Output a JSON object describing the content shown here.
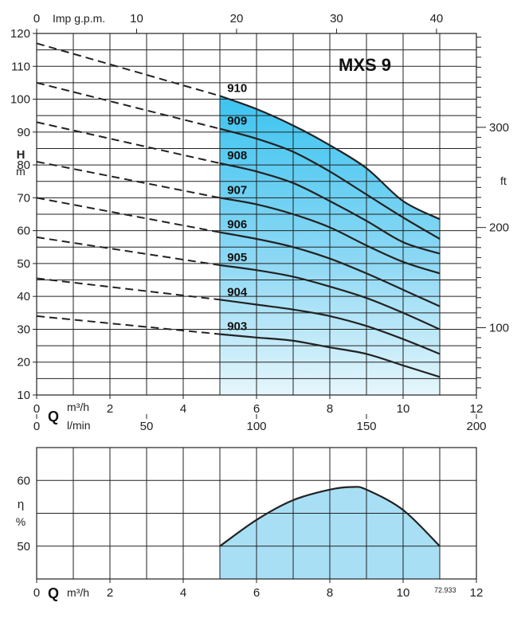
{
  "chart_data": [
    {
      "type": "line",
      "title": "MXS 9",
      "ylabel": "H",
      "yunit": "m",
      "y2unit": "ft",
      "xlabel": "Q",
      "xunit": "m³/h",
      "x_top_label": "Imp g.p.m.",
      "x_lmin_label": "l/min",
      "xlim": [
        0,
        12
      ],
      "ylim": [
        10,
        120
      ],
      "x_ticks": [
        0,
        2,
        4,
        6,
        8,
        10,
        12
      ],
      "y_ticks": [
        10,
        20,
        30,
        40,
        50,
        60,
        70,
        80,
        90,
        100,
        110,
        120
      ],
      "gpm_ticks": [
        0,
        10,
        20,
        30,
        40
      ],
      "lmin_ticks": [
        0,
        50,
        100,
        150,
        200
      ],
      "ft_ticks": [
        100,
        200,
        300
      ],
      "operating_range": [
        5,
        11
      ],
      "series": [
        {
          "name": "910",
          "x": [
            0,
            5,
            6,
            7,
            8,
            9,
            10,
            11
          ],
          "y": [
            117,
            101,
            97,
            92,
            86,
            79,
            69,
            63.5
          ]
        },
        {
          "name": "909",
          "x": [
            0,
            5,
            6,
            7,
            8,
            9,
            10,
            11
          ],
          "y": [
            105,
            91,
            88,
            84,
            78,
            71,
            64,
            57.5
          ]
        },
        {
          "name": "908",
          "x": [
            0,
            5,
            6,
            7,
            8,
            9,
            10,
            11
          ],
          "y": [
            93,
            80.5,
            78,
            74.5,
            69,
            63,
            56.5,
            53
          ]
        },
        {
          "name": "907",
          "x": [
            0,
            5,
            6,
            7,
            8,
            9,
            10,
            11
          ],
          "y": [
            81,
            70,
            68,
            65,
            61,
            55.5,
            50.5,
            47
          ]
        },
        {
          "name": "906",
          "x": [
            0,
            5,
            6,
            7,
            8,
            9,
            10,
            11
          ],
          "y": [
            70,
            59.5,
            57.5,
            55,
            51.5,
            47,
            42,
            37
          ]
        },
        {
          "name": "905",
          "x": [
            0,
            5,
            6,
            7,
            8,
            9,
            10,
            11
          ],
          "y": [
            58,
            49.5,
            48,
            46,
            43,
            39.5,
            35,
            30
          ]
        },
        {
          "name": "904",
          "x": [
            0,
            5,
            6,
            7,
            8,
            9,
            10,
            11
          ],
          "y": [
            45.5,
            39,
            37.5,
            36,
            34,
            31,
            27,
            22.5
          ]
        },
        {
          "name": "903",
          "x": [
            0,
            5,
            6,
            7,
            8,
            9,
            10,
            11
          ],
          "y": [
            34,
            28.5,
            27.5,
            26.5,
            24.5,
            22.5,
            19,
            15.5
          ]
        }
      ]
    },
    {
      "type": "area",
      "ylabel": "η",
      "yunit": "%",
      "xlabel": "Q",
      "xunit": "m³/h",
      "xlim": [
        0,
        12
      ],
      "ylim": [
        45,
        65
      ],
      "x_ticks": [
        0,
        2,
        4,
        6,
        8,
        10,
        12
      ],
      "y_ticks": [
        50,
        60
      ],
      "series": [
        {
          "name": "efficiency",
          "x": [
            5,
            6,
            7,
            8,
            8.6,
            9,
            10,
            11
          ],
          "y": [
            50,
            54,
            57,
            58.6,
            59,
            58.6,
            55.5,
            50
          ]
        }
      ]
    }
  ],
  "reference_number": "72.933"
}
